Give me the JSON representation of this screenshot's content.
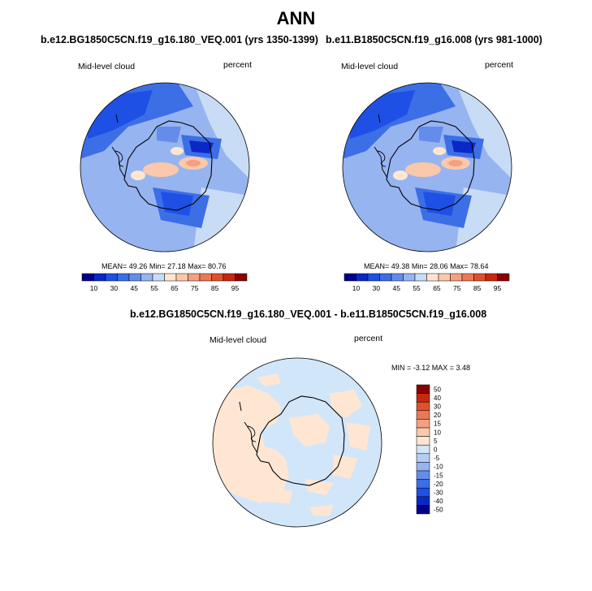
{
  "page": {
    "title": "ANN"
  },
  "panels": [
    {
      "title": "b.e12.BG1850C5CN.f19_g16.180_VEQ.001 (yrs 1350-1399)",
      "variable": "Mid-level cloud",
      "units": "percent",
      "stats": {
        "mean_label": "MEAN=",
        "mean": "49.26",
        "min_label": "Min=",
        "min": "27.18",
        "max_label": "Max=",
        "max": "80.76"
      },
      "colorbar_labels": [
        "10",
        "30",
        "45",
        "55",
        "65",
        "75",
        "85",
        "95"
      ]
    },
    {
      "title": "b.e11.B1850C5CN.f19_g16.008 (yrs 981-1000)",
      "variable": "Mid-level cloud",
      "units": "percent",
      "stats": {
        "mean_label": "MEAN=",
        "mean": "49.38",
        "min_label": "Min=",
        "min": "28.06",
        "max_label": "Max=",
        "max": "78.64"
      },
      "colorbar_labels": [
        "10",
        "30",
        "45",
        "55",
        "65",
        "75",
        "85",
        "95"
      ]
    }
  ],
  "diff_panel": {
    "title": "b.e12.BG1850C5CN.f19_g16.180_VEQ.001 - b.e11.B1850C5CN.f19_g16.008",
    "variable": "Mid-level cloud",
    "units": "percent",
    "stats_text": "MIN =  -3.12 MAX =   3.48",
    "colorbar_labels": [
      "50",
      "40",
      "30",
      "20",
      "15",
      "10",
      "5",
      "0",
      "-5",
      "-10",
      "-15",
      "-20",
      "-30",
      "-40",
      "-50"
    ]
  },
  "colors": {
    "abs_colorbar": [
      "#00008b",
      "#0a28c8",
      "#1e50e6",
      "#3c6ee6",
      "#648ceb",
      "#96b4f0",
      "#c8dcf5",
      "#ffe6d2",
      "#fac8aa",
      "#f5a082",
      "#eb7855",
      "#e1502d",
      "#c8280f",
      "#8b0000"
    ],
    "diff_colorbar": [
      "#8b0000",
      "#c8280f",
      "#e1502d",
      "#eb7855",
      "#f5a082",
      "#fac8aa",
      "#ffe6d2",
      "#d2e6fa",
      "#b4cdf5",
      "#96b4f0",
      "#648ceb",
      "#3c6ee6",
      "#1e50e6",
      "#0a28c8",
      "#00008b"
    ],
    "map_ocean_base": "#96b4f0",
    "diff_base": "#d2e6fa",
    "diff_positive": "#ffe6d2"
  }
}
